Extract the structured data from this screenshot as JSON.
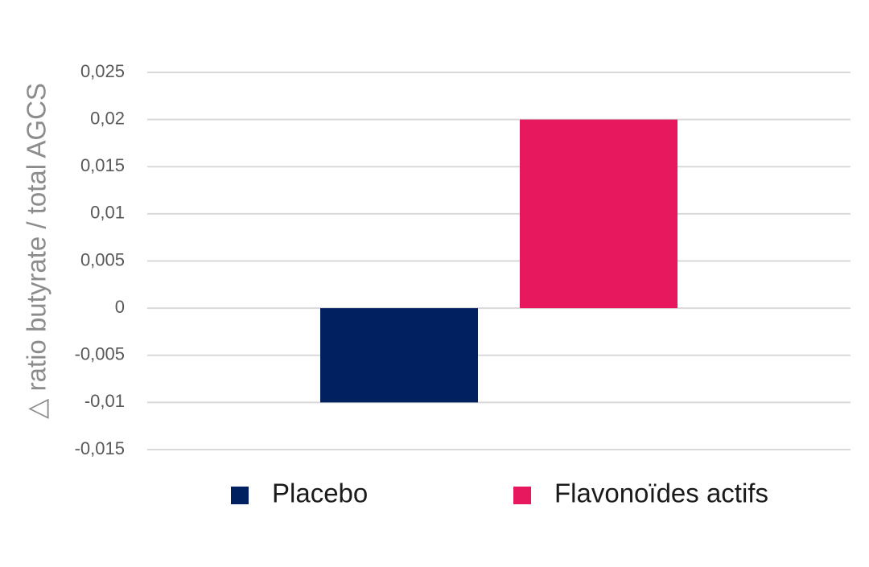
{
  "chart_data": {
    "type": "bar",
    "y_label": "△ ratio butyrate / total AGCS",
    "categories": [
      null
    ],
    "series": [
      {
        "name": "Placebo",
        "color": "#002060",
        "values": [
          -0.01
        ]
      },
      {
        "name": "Flavonoïdes actifs",
        "color": "#e8185e",
        "values": [
          0.02
        ]
      }
    ],
    "ylim": [
      -0.015,
      0.025
    ],
    "yticks": [
      {
        "value": -0.015,
        "label": "-0,015"
      },
      {
        "value": -0.01,
        "label": "-0,01"
      },
      {
        "value": -0.005,
        "label": "-0,005"
      },
      0,
      {
        "value": 0.005,
        "label": "0,005"
      },
      {
        "value": 0.01,
        "label": "0,01"
      },
      {
        "value": 0.015,
        "label": "0,015"
      },
      {
        "value": 0.02,
        "label": "0,02"
      },
      {
        "value": 0.025,
        "label": "0,025"
      }
    ],
    "grid": true,
    "legend": "bottom"
  }
}
